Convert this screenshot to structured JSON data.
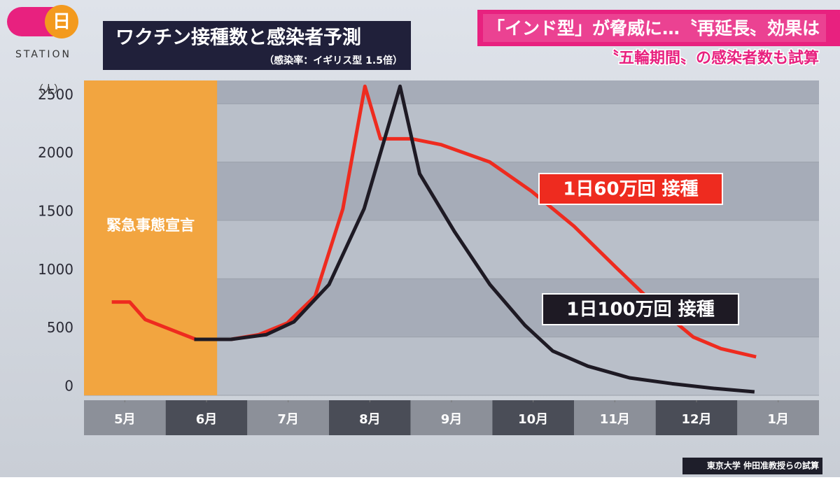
{
  "logo": {
    "mark": "日",
    "name": "STATION"
  },
  "headline": "「インド型」が脅威に…〝再延長〟効果は",
  "subheadline": "〝五輪期間〟の感染者数も試算",
  "source": "東京大学 仲田准教授らの試算",
  "chart_data": {
    "type": "line",
    "title": "ワクチン接種数と感染者予測",
    "subtitle": "（感染率：イギリス型 1.5倍）",
    "y_unit": "（人）",
    "xlim": [
      0,
      9
    ],
    "xticks": [
      {
        "value": 0.5,
        "label": "5月"
      },
      {
        "value": 1.5,
        "label": "6月"
      },
      {
        "value": 2.5,
        "label": "7月"
      },
      {
        "value": 3.5,
        "label": "8月"
      },
      {
        "value": 4.5,
        "label": "9月"
      },
      {
        "value": 5.5,
        "label": "10月"
      },
      {
        "value": 6.5,
        "label": "11月"
      },
      {
        "value": 7.5,
        "label": "12月"
      },
      {
        "value": 8.5,
        "label": "1月"
      }
    ],
    "ylim": [
      0,
      2700
    ],
    "yticks": [
      0,
      500,
      1000,
      1500,
      2000,
      2500
    ],
    "shaded_region": {
      "label": "緊急事態宣言",
      "x": [
        0,
        1.63
      ],
      "color": "#f2a540"
    },
    "series": [
      {
        "name": "1日60万回 接種",
        "color": "#ee2b1f",
        "x": [
          0.34,
          0.56,
          0.75,
          1.37,
          1.8,
          2.14,
          2.49,
          2.83,
          3.17,
          3.44,
          3.63,
          4.01,
          4.37,
          4.97,
          5.48,
          6.0,
          6.51,
          7.03,
          7.46,
          7.8,
          8.23
        ],
        "values": [
          800,
          800,
          650,
          480,
          480,
          520,
          620,
          850,
          1600,
          2650,
          2200,
          2200,
          2150,
          2000,
          1750,
          1450,
          1100,
          750,
          500,
          400,
          330
        ]
      },
      {
        "name": "1日100万回 接種",
        "color": "#1e1a24",
        "x": [
          1.35,
          1.8,
          2.23,
          2.57,
          3.0,
          3.43,
          3.87,
          4.11,
          4.54,
          4.97,
          5.4,
          5.74,
          6.17,
          6.68,
          7.2,
          7.71,
          8.21
        ],
        "values": [
          480,
          480,
          520,
          630,
          950,
          1600,
          2650,
          1900,
          1400,
          950,
          600,
          380,
          250,
          150,
          100,
          60,
          30
        ]
      }
    ]
  }
}
